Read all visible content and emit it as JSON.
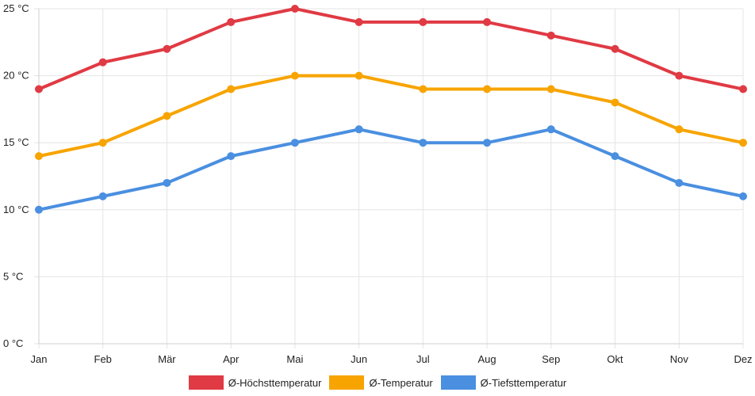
{
  "chart_data": {
    "type": "line",
    "categories": [
      "Jan",
      "Feb",
      "Mär",
      "Apr",
      "Mai",
      "Jun",
      "Jul",
      "Aug",
      "Sep",
      "Okt",
      "Nov",
      "Dez"
    ],
    "series": [
      {
        "name": "Ø-Höchsttemperatur",
        "color": "#e03a44",
        "values": [
          19,
          21,
          22,
          24,
          25,
          24,
          24,
          24,
          23,
          22,
          20,
          19
        ]
      },
      {
        "name": "Ø-Temperatur",
        "color": "#f7a400",
        "values": [
          14,
          15,
          17,
          19,
          20,
          20,
          19,
          19,
          19,
          18,
          16,
          15
        ]
      },
      {
        "name": "Ø-Tiefsttemperatur",
        "color": "#4a8fe0",
        "values": [
          10,
          11,
          12,
          14,
          15,
          16,
          15,
          15,
          16,
          14,
          12,
          11
        ]
      }
    ],
    "yticks": [
      "0 °C",
      "5 °C",
      "10 °C",
      "15 °C",
      "20 °C",
      "25 °C"
    ],
    "ylim": [
      0,
      25
    ],
    "grid": true,
    "legend_position": "bottom"
  }
}
